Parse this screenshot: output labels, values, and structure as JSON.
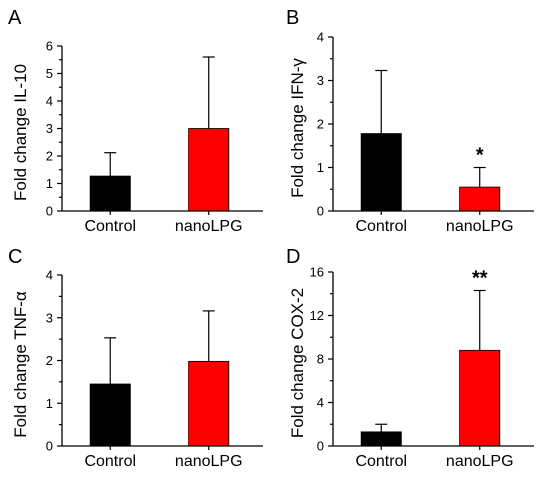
{
  "chart_data": [
    {
      "type": "bar",
      "panel": "A",
      "categories": [
        "Control",
        "nanoLPG"
      ],
      "values": [
        1.27,
        3.0
      ],
      "errors": [
        0.85,
        2.6
      ],
      "ylabel": "Fold change IL-10",
      "ylim": [
        0,
        6
      ],
      "yticks": [
        0,
        1,
        2,
        3,
        4,
        5,
        6
      ],
      "significance": [
        "",
        ""
      ],
      "colors": [
        "#000000",
        "#ff0000"
      ]
    },
    {
      "type": "bar",
      "panel": "B",
      "categories": [
        "Control",
        "nanoLPG"
      ],
      "values": [
        1.78,
        0.55
      ],
      "errors": [
        1.45,
        0.45
      ],
      "ylabel": "Fold change IFN-γ",
      "ylim": [
        0,
        4
      ],
      "yticks": [
        0,
        1,
        2,
        3,
        4
      ],
      "significance": [
        "",
        "*"
      ],
      "colors": [
        "#000000",
        "#ff0000"
      ]
    },
    {
      "type": "bar",
      "panel": "C",
      "categories": [
        "Control",
        "nanoLPG"
      ],
      "values": [
        1.45,
        1.98
      ],
      "errors": [
        1.08,
        1.18
      ],
      "ylabel": "Fold change TNF-α",
      "ylim": [
        0,
        4
      ],
      "yticks": [
        0,
        1,
        2,
        3,
        4
      ],
      "significance": [
        "",
        ""
      ],
      "colors": [
        "#000000",
        "#ff0000"
      ]
    },
    {
      "type": "bar",
      "panel": "D",
      "categories": [
        "Control",
        "nanoLPG"
      ],
      "values": [
        1.3,
        8.8
      ],
      "errors": [
        0.7,
        5.5
      ],
      "ylabel": "Fold change COX-2",
      "ylim": [
        0,
        16
      ],
      "yticks": [
        0,
        4,
        8,
        12,
        16
      ],
      "significance": [
        "",
        "**"
      ],
      "colors": [
        "#000000",
        "#ff0000"
      ]
    }
  ]
}
